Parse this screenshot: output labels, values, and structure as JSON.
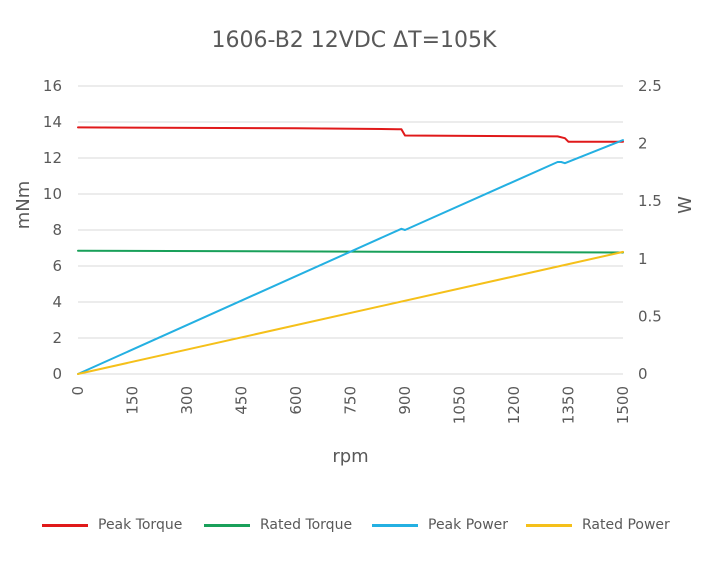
{
  "chart_data": {
    "type": "line",
    "title": "1606-B2 12VDC ΔT=105K",
    "xlabel": "rpm",
    "ylabel_left": "mNm",
    "ylabel_right": "W",
    "x_ticks": [
      "0",
      "150",
      "300",
      "450",
      "600",
      "750",
      "900",
      "1050",
      "1200",
      "1350",
      "1500"
    ],
    "y_left_ticks": [
      "0",
      "2",
      "4",
      "6",
      "8",
      "10",
      "12",
      "14",
      "16"
    ],
    "y_right_ticks": [
      "0",
      "0.5",
      "1",
      "1.5",
      "2",
      "2.5"
    ],
    "xlim": [
      0,
      1500
    ],
    "ylim_left": [
      0,
      16
    ],
    "ylim_right": [
      0,
      2.5
    ],
    "grid": "horizontal",
    "legend_position": "bottom",
    "series": [
      {
        "name": "Peak Torque",
        "axis": "left",
        "color": "#e0191a",
        "x": [
          0,
          600,
          880,
          890,
          900,
          1320,
          1340,
          1350,
          1500
        ],
        "y": [
          13.7,
          13.65,
          13.6,
          13.6,
          13.25,
          13.2,
          13.1,
          12.9,
          12.9
        ]
      },
      {
        "name": "Rated Torque",
        "axis": "left",
        "color": "#19a05a",
        "x": [
          0,
          750,
          1500
        ],
        "y": [
          6.85,
          6.8,
          6.75
        ]
      },
      {
        "name": "Peak Power",
        "axis": "right",
        "color": "#24b0e2",
        "x": [
          0,
          890,
          900,
          1320,
          1330,
          1340,
          1500
        ],
        "y": [
          0,
          1.26,
          1.25,
          1.84,
          1.84,
          1.83,
          2.03
        ]
      },
      {
        "name": "Rated Power",
        "axis": "right",
        "color": "#f5c01a",
        "x": [
          0,
          1500
        ],
        "y": [
          0,
          1.06
        ]
      }
    ]
  }
}
